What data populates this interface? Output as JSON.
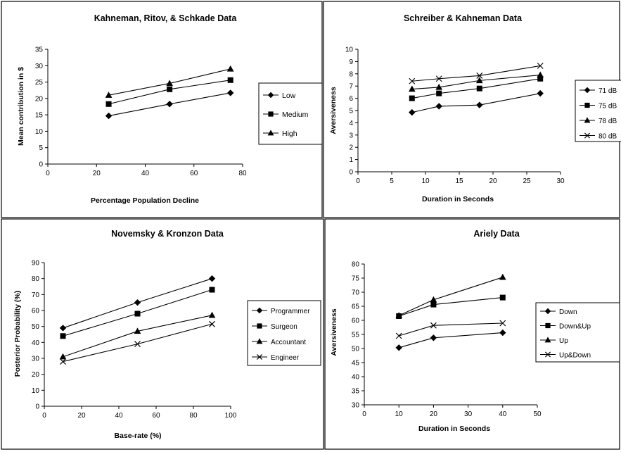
{
  "chart_data": [
    {
      "type": "line",
      "title": "Kahneman, Ritov, & Schkade Data",
      "xlabel": "Percentage Population Decline",
      "ylabel": "Mean contribution in $",
      "xlim": [
        0,
        80
      ],
      "ylim": [
        0,
        35
      ],
      "xticks": [
        "0",
        "20",
        "40",
        "60",
        "80"
      ],
      "yticks": [
        "0",
        "5",
        "10",
        "15",
        "20",
        "25",
        "30",
        "35"
      ],
      "legend_position": "right",
      "grid": false,
      "x": [
        25,
        50,
        75
      ],
      "series": [
        {
          "name": "Low",
          "marker": "diamond",
          "values": [
            14.7,
            18.3,
            21.7
          ]
        },
        {
          "name": "Medium",
          "marker": "square",
          "values": [
            18.3,
            22.8,
            25.6
          ]
        },
        {
          "name": "High",
          "marker": "triangle",
          "values": [
            21.0,
            24.6,
            29.0
          ]
        }
      ]
    },
    {
      "type": "line",
      "title": "Schreiber & Kahneman Data",
      "xlabel": "Duration in Seconds",
      "ylabel": "Aversiveness",
      "xlim": [
        0,
        30
      ],
      "ylim": [
        0,
        10
      ],
      "xticks": [
        "0",
        "5",
        "10",
        "15",
        "20",
        "25",
        "30"
      ],
      "yticks": [
        "0",
        "1",
        "2",
        "3",
        "4",
        "5",
        "6",
        "7",
        "8",
        "9",
        "10"
      ],
      "legend_position": "right",
      "grid": false,
      "x": [
        8,
        12,
        18,
        27
      ],
      "series": [
        {
          "name": "71 dB",
          "marker": "diamond",
          "values": [
            4.85,
            5.35,
            5.45,
            6.4
          ]
        },
        {
          "name": "75 dB",
          "marker": "square",
          "values": [
            6.0,
            6.4,
            6.8,
            7.6
          ]
        },
        {
          "name": "78 dB",
          "marker": "triangle",
          "values": [
            6.75,
            6.9,
            7.45,
            7.9
          ]
        },
        {
          "name": "80 dB",
          "marker": "x",
          "values": [
            7.4,
            7.6,
            7.85,
            8.65
          ]
        }
      ]
    },
    {
      "type": "line",
      "title": "Novemsky & Kronzon Data",
      "xlabel": "Base-rate (%)",
      "ylabel": "Posterior Probability (%)",
      "xlim": [
        0,
        100
      ],
      "ylim": [
        0,
        90
      ],
      "xticks": [
        "0",
        "20",
        "40",
        "60",
        "80",
        "100"
      ],
      "yticks": [
        "0",
        "10",
        "20",
        "30",
        "40",
        "50",
        "60",
        "70",
        "80",
        "90"
      ],
      "legend_position": "right",
      "grid": false,
      "x": [
        10,
        50,
        90
      ],
      "series": [
        {
          "name": "Programmer",
          "marker": "diamond",
          "values": [
            49,
            65,
            80
          ]
        },
        {
          "name": "Surgeon",
          "marker": "square",
          "values": [
            44,
            58,
            73
          ]
        },
        {
          "name": "Accountant",
          "marker": "triangle",
          "values": [
            31,
            47,
            57
          ]
        },
        {
          "name": "Engineer",
          "marker": "x",
          "values": [
            28,
            39,
            51.5
          ]
        }
      ]
    },
    {
      "type": "line",
      "title": "Ariely Data",
      "xlabel": "Duration in Seconds",
      "ylabel": "Aversiveness",
      "xlim": [
        0,
        50
      ],
      "ylim": [
        30,
        80
      ],
      "xticks": [
        "0",
        "10",
        "20",
        "30",
        "40",
        "50"
      ],
      "yticks": [
        "30",
        "35",
        "40",
        "45",
        "50",
        "55",
        "60",
        "65",
        "70",
        "75",
        "80"
      ],
      "legend_position": "right",
      "grid": false,
      "x": [
        10,
        20,
        40
      ],
      "series": [
        {
          "name": "Down",
          "marker": "diamond",
          "values": [
            50.3,
            53.8,
            55.6
          ]
        },
        {
          "name": "Down&Up",
          "marker": "square",
          "values": [
            61.5,
            65.6,
            68.1
          ]
        },
        {
          "name": "Up",
          "marker": "triangle",
          "values": [
            61.7,
            67.3,
            75.3
          ]
        },
        {
          "name": "Up&Down",
          "marker": "x",
          "values": [
            54.5,
            58.2,
            59.0
          ]
        }
      ]
    }
  ]
}
